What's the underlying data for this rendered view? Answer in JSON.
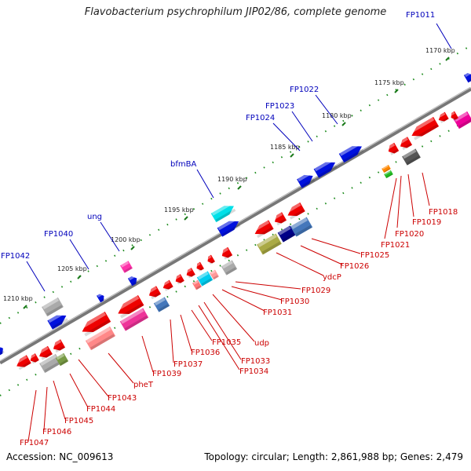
{
  "title": "Flavobacterium psychrophilum JIP02/86, complete genome",
  "footer": {
    "accession": "Accession: NC_009613",
    "summary": "Topology: circular; Length: 2,861,988 bp; Genes: 2,479"
  },
  "colors": {
    "backbone": "#7a7a7a",
    "forward_label": "#0000bb",
    "reverse_label": "#cc0000",
    "ticks": "#1a8a1a"
  },
  "scale_ticks": [
    "1170 kbp",
    "1175 kbp",
    "1180 kbp",
    "1185 kbp",
    "1190 kbp",
    "1195 kbp",
    "1200 kbp",
    "1205 kbp",
    "1210 kbp"
  ],
  "forward_gene_labels": [
    "FP1011",
    "FP1022",
    "FP1023",
    "FP1024",
    "bfmBA",
    "ung",
    "FP1040",
    "FP1042"
  ],
  "reverse_gene_labels": [
    "FP1018",
    "FP1019",
    "FP1020",
    "FP1021",
    "FP1025",
    "FP1026",
    "ydcP",
    "FP1029",
    "FP1030",
    "FP1031",
    "udp",
    "FP1033",
    "FP1034",
    "FP1035",
    "FP1036",
    "FP1037",
    "FP1039",
    "pheT",
    "FP1043",
    "FP1044",
    "FP1045",
    "FP1046",
    "FP1047"
  ]
}
